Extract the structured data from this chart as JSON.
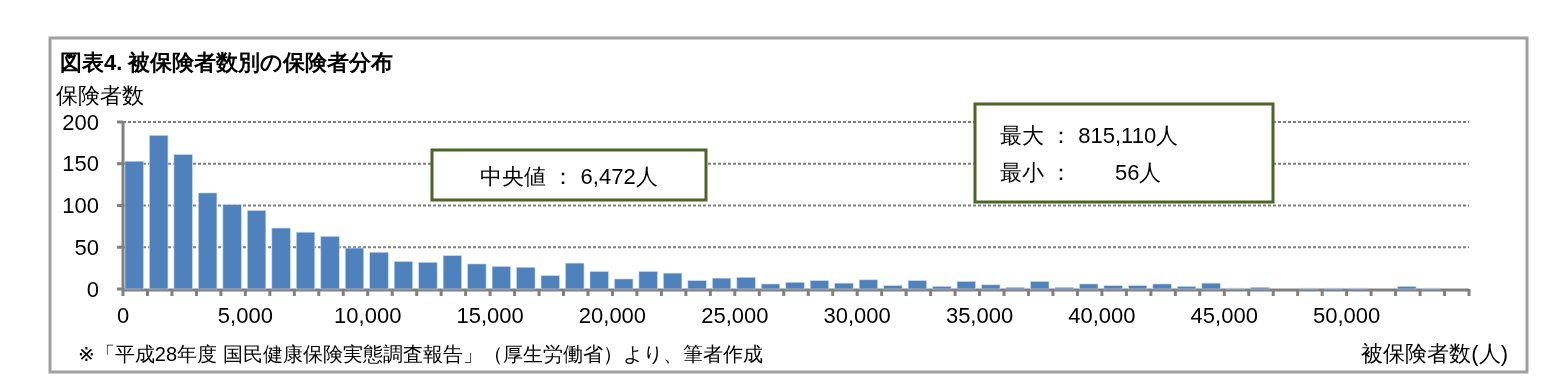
{
  "chart_data": {
    "type": "histogram",
    "title": "図表4. 被保険者数別の保険者分布",
    "ylabel": "保険者数",
    "xlabel": "被保険者数(人)",
    "annotations": [
      "中央値 ： 6,472人",
      "最大 ： 815,110人",
      "最小 ：       56人",
      "※「平成28年度 国民健康保険実態調査報告」（厚生労働省）より、筆者作成"
    ],
    "bins": [
      0,
      1000,
      2000,
      3000,
      4000,
      5000,
      6000,
      7000,
      8000,
      9000,
      10000,
      11000,
      12000,
      13000,
      14000,
      15000,
      16000,
      17000,
      18000,
      19000,
      20000,
      21000,
      22000,
      23000,
      24000,
      25000,
      26000,
      27000,
      28000,
      29000,
      30000,
      31000,
      32000,
      33000,
      34000,
      35000,
      36000,
      37000,
      38000,
      39000,
      40000,
      41000,
      42000,
      43000,
      44000,
      45000,
      46000,
      47000,
      48000,
      49000,
      50000,
      51000,
      52000,
      53000,
      54000,
      55000
    ],
    "values": [
      153,
      184,
      161,
      115,
      101,
      94,
      73,
      68,
      63,
      49,
      44,
      33,
      32,
      40,
      30,
      27,
      26,
      16,
      31,
      21,
      12,
      21,
      19,
      10,
      13,
      14,
      6,
      8,
      10,
      7,
      11,
      4,
      10,
      3,
      9,
      5,
      2,
      9,
      2,
      6,
      4,
      4,
      6,
      3,
      7,
      1,
      2,
      0,
      1,
      1,
      1,
      0,
      3,
      1,
      0
    ],
    "color": "#4f81bd",
    "xlim": [
      0,
      55000
    ],
    "xticks": [
      {
        "value": 0,
        "label": "0"
      },
      {
        "value": 1000,
        "label": null
      },
      {
        "value": 2000,
        "label": null
      },
      {
        "value": 3000,
        "label": null
      },
      {
        "value": 4000,
        "label": null
      },
      {
        "value": 5000,
        "label": "5,000"
      },
      {
        "value": 6000,
        "label": null
      },
      {
        "value": 7000,
        "label": null
      },
      {
        "value": 8000,
        "label": null
      },
      {
        "value": 9000,
        "label": null
      },
      {
        "value": 10000,
        "label": "10,000"
      },
      {
        "value": 11000,
        "label": null
      },
      {
        "value": 12000,
        "label": null
      },
      {
        "value": 13000,
        "label": null
      },
      {
        "value": 14000,
        "label": null
      },
      {
        "value": 15000,
        "label": "15,000"
      },
      {
        "value": 16000,
        "label": null
      },
      {
        "value": 17000,
        "label": null
      },
      {
        "value": 18000,
        "label": null
      },
      {
        "value": 19000,
        "label": null
      },
      {
        "value": 20000,
        "label": "20,000"
      },
      {
        "value": 21000,
        "label": null
      },
      {
        "value": 22000,
        "label": null
      },
      {
        "value": 23000,
        "label": null
      },
      {
        "value": 24000,
        "label": null
      },
      {
        "value": 25000,
        "label": "25,000"
      },
      {
        "value": 26000,
        "label": null
      },
      {
        "value": 27000,
        "label": null
      },
      {
        "value": 28000,
        "label": null
      },
      {
        "value": 29000,
        "label": null
      },
      {
        "value": 30000,
        "label": "30,000"
      },
      {
        "value": 31000,
        "label": null
      },
      {
        "value": 32000,
        "label": null
      },
      {
        "value": 33000,
        "label": null
      },
      {
        "value": 34000,
        "label": null
      },
      {
        "value": 35000,
        "label": "35,000"
      },
      {
        "value": 36000,
        "label": null
      },
      {
        "value": 37000,
        "label": null
      },
      {
        "value": 38000,
        "label": null
      },
      {
        "value": 39000,
        "label": null
      },
      {
        "value": 40000,
        "label": "40,000"
      },
      {
        "value": 41000,
        "label": null
      },
      {
        "value": 42000,
        "label": null
      },
      {
        "value": 43000,
        "label": null
      },
      {
        "value": 44000,
        "label": null
      },
      {
        "value": 45000,
        "label": "45,000"
      },
      {
        "value": 46000,
        "label": null
      },
      {
        "value": 47000,
        "label": null
      },
      {
        "value": 48000,
        "label": null
      },
      {
        "value": 49000,
        "label": null
      },
      {
        "value": 50000,
        "label": "50,000"
      },
      {
        "value": 51000,
        "label": null
      },
      {
        "value": 52000,
        "label": null
      },
      {
        "value": 53000,
        "label": null
      },
      {
        "value": 54000,
        "label": null
      },
      {
        "value": 55000,
        "label": null
      }
    ],
    "ylim": [
      0,
      200
    ],
    "yticks": [
      0,
      50,
      100,
      150,
      200
    ],
    "grid": "y"
  }
}
